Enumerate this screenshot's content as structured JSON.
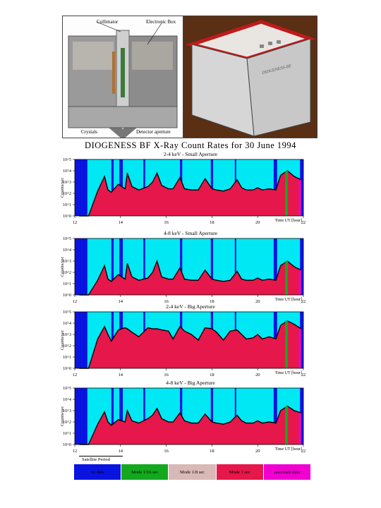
{
  "photos": {
    "left_labels": {
      "collimator": "Collimator",
      "electronic_box": "Electronic Box",
      "crystals": "Crystals",
      "detector_aperture": "Detector aperture"
    },
    "right_marking": "DIOGENESS-BF"
  },
  "figure_title": "DIOGENESS BF X-Ray Count Rates for 30 June 1994",
  "colors": {
    "cyan": "#00e8f4",
    "blue": "#0a14e0",
    "green": "#13a81e",
    "pink": "#e6174a",
    "magenta": "#f000d0"
  },
  "chart_data": [
    {
      "type": "area",
      "title": "2-4 keV - Small Aperture",
      "ylabel": "Counts/sec",
      "xlabel": "Time UT [hour]",
      "xlim": [
        12,
        22
      ],
      "x_ticks": [
        "12",
        "14",
        "16",
        "18",
        "20",
        "22"
      ],
      "y_scale": "log",
      "y_ticks": [
        "10^0",
        "10^1",
        "10^2",
        "10^3",
        "10^4",
        "10^5"
      ],
      "series": [
        {
          "x": [
            12.2,
            12.6,
            13.0,
            13.3,
            13.45,
            13.6,
            13.9,
            14.2,
            14.3,
            14.5,
            14.8,
            15.2,
            15.4,
            15.6,
            15.8,
            16.1,
            16.3,
            16.6,
            16.8,
            17.1,
            17.4,
            17.7,
            18.0,
            18.2,
            18.5,
            18.8,
            19.1,
            19.3,
            19.5,
            19.8,
            20.0,
            20.2,
            20.5,
            20.8,
            21.0,
            21.3,
            21.6,
            21.9
          ],
          "values": [
            0,
            0,
            2.2,
            3.5,
            2.3,
            2.1,
            2.8,
            2.4,
            3.8,
            2.6,
            2.3,
            2.6,
            3.0,
            3.8,
            2.7,
            2.4,
            2.4,
            3.4,
            2.4,
            2.3,
            2.3,
            3.3,
            2.4,
            2.3,
            2.2,
            2.4,
            3.2,
            2.5,
            2.3,
            2.3,
            2.5,
            2.3,
            2.4,
            2.3,
            3.6,
            4.0,
            3.5,
            3.2
          ]
        }
      ]
    },
    {
      "type": "area",
      "title": "4-8 keV - Small Aperture",
      "ylabel": "Counts/sec",
      "xlabel": "Time UT [hour]",
      "xlim": [
        12,
        22
      ],
      "x_ticks": [
        "12",
        "14",
        "16",
        "18",
        "20",
        "22"
      ],
      "y_scale": "log",
      "y_ticks": [
        "10^0",
        "10^1",
        "10^2",
        "10^3",
        "10^4",
        "10^5"
      ],
      "series": [
        {
          "x": [
            12.2,
            12.6,
            13.0,
            13.3,
            13.45,
            13.6,
            13.9,
            14.2,
            14.3,
            14.5,
            14.8,
            15.2,
            15.4,
            15.6,
            15.8,
            16.1,
            16.3,
            16.6,
            16.8,
            17.1,
            17.4,
            17.7,
            18.0,
            18.2,
            18.5,
            18.8,
            19.1,
            19.3,
            19.5,
            19.8,
            20.0,
            20.2,
            20.5,
            20.8,
            21.0,
            21.3,
            21.6,
            21.9
          ],
          "values": [
            0,
            0,
            1.3,
            2.6,
            1.4,
            1.2,
            1.8,
            1.4,
            2.8,
            1.6,
            1.3,
            1.5,
            2.0,
            3.0,
            1.6,
            1.4,
            1.4,
            2.4,
            1.4,
            1.3,
            1.3,
            2.2,
            1.4,
            1.3,
            1.2,
            1.3,
            2.1,
            1.4,
            1.3,
            1.3,
            1.5,
            1.3,
            1.4,
            1.3,
            2.6,
            3.0,
            2.5,
            2.2
          ]
        }
      ]
    },
    {
      "type": "area",
      "title": "2-4 keV - Big Aperture",
      "ylabel": "Counts/sec",
      "xlabel": "Time UT [hour]",
      "xlim": [
        12,
        22
      ],
      "x_ticks": [
        "12",
        "14",
        "16",
        "18",
        "20",
        "22"
      ],
      "y_scale": "log",
      "y_ticks": [
        "10^0",
        "10^1",
        "10^2",
        "10^3",
        "10^4",
        "10^5"
      ],
      "series": [
        {
          "x": [
            12.2,
            12.6,
            13.0,
            13.3,
            13.45,
            13.6,
            13.9,
            14.2,
            14.3,
            14.5,
            14.8,
            15.2,
            15.4,
            15.6,
            15.8,
            16.1,
            16.3,
            16.6,
            16.8,
            17.1,
            17.4,
            17.7,
            18.0,
            18.2,
            18.5,
            18.8,
            19.1,
            19.3,
            19.5,
            19.8,
            20.0,
            20.2,
            20.5,
            20.8,
            21.0,
            21.3,
            21.6,
            21.9
          ],
          "values": [
            0,
            0,
            2.6,
            3.7,
            3.0,
            2.4,
            3.4,
            3.6,
            3.5,
            3.2,
            2.8,
            3.6,
            3.5,
            3.5,
            3.4,
            3.3,
            2.6,
            3.7,
            3.3,
            3.0,
            2.5,
            3.6,
            3.5,
            3.2,
            2.5,
            3.3,
            3.4,
            3.0,
            2.6,
            2.7,
            3.0,
            2.6,
            2.8,
            2.6,
            3.8,
            4.2,
            3.9,
            3.5
          ]
        }
      ]
    },
    {
      "type": "area",
      "title": "4-8 keV - Big Aperture",
      "ylabel": "Counts/sec",
      "xlabel": "Time UT [hour]",
      "xlim": [
        12,
        22
      ],
      "x_ticks": [
        "12",
        "14",
        "16",
        "18",
        "20",
        "22"
      ],
      "y_scale": "log",
      "y_ticks": [
        "10^0",
        "10^1",
        "10^2",
        "10^3",
        "10^4",
        "10^5"
      ],
      "series": [
        {
          "x": [
            12.2,
            12.6,
            13.0,
            13.3,
            13.45,
            13.6,
            13.9,
            14.2,
            14.3,
            14.5,
            14.8,
            15.2,
            15.4,
            15.6,
            15.8,
            16.1,
            16.3,
            16.6,
            16.8,
            17.1,
            17.4,
            17.7,
            18.0,
            18.2,
            18.5,
            18.8,
            19.1,
            19.3,
            19.5,
            19.8,
            20.0,
            20.2,
            20.5,
            20.8,
            21.0,
            21.3,
            21.6,
            21.9
          ],
          "values": [
            0,
            0,
            1.8,
            2.9,
            2.0,
            1.7,
            2.2,
            2.0,
            3.0,
            2.1,
            1.9,
            2.3,
            2.6,
            3.2,
            2.3,
            2.0,
            2.0,
            2.8,
            2.1,
            1.9,
            1.9,
            2.7,
            2.0,
            1.9,
            1.8,
            2.0,
            2.6,
            2.1,
            1.9,
            1.9,
            2.1,
            1.9,
            2.0,
            1.9,
            3.0,
            3.4,
            3.0,
            2.8
          ]
        }
      ]
    }
  ],
  "blue_bands": [
    [
      12.0,
      12.55
    ],
    [
      13.6,
      13.7
    ],
    [
      13.95,
      14.1
    ],
    [
      15.0,
      15.08
    ],
    [
      16.6,
      16.7
    ],
    [
      17.95,
      18.05
    ],
    [
      19.0,
      19.05
    ],
    [
      20.7,
      20.85
    ],
    [
      21.85,
      22.0
    ]
  ],
  "satellite_period_label": "Satellite Period",
  "legend": [
    {
      "label": "no data",
      "color": "#0a14e0"
    },
    {
      "label": "Mode 1/16 sec",
      "color": "#13a81e"
    },
    {
      "label": "Mode 1/8 sec",
      "color": "#d9b8b8"
    },
    {
      "label": "Mode 1 sec",
      "color": "#e6174a"
    },
    {
      "label": "uncertain data",
      "color": "#f000d0"
    }
  ]
}
